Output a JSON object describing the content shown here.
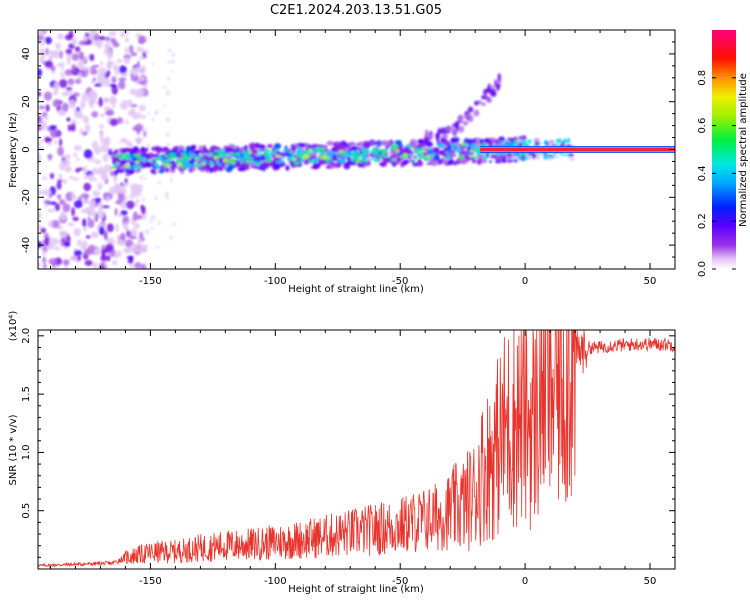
{
  "title": "C2E1.2024.203.13.51.G05",
  "colors": {
    "snr_line": "#e8342d",
    "axis": "#000000"
  },
  "chart_data": [
    {
      "type": "heatmap",
      "xlabel": "Height of straight line (km)",
      "ylabel": "Frequency (Hz)",
      "xlim": [
        -195,
        60
      ],
      "ylim": [
        -50,
        50
      ],
      "x_ticks": [
        -150,
        -100,
        -50,
        0,
        50
      ],
      "y_ticks": [
        -40,
        -20,
        0,
        20,
        40
      ],
      "colorbar": {
        "label": "Normalized spectral amplitude",
        "range": [
          0,
          1
        ],
        "ticks": [
          "0.0",
          "0.2",
          "0.4",
          "0.6",
          "0.8"
        ],
        "tick_values": [
          0.0,
          0.2,
          0.4,
          0.6,
          0.8
        ],
        "colormap": "rainbow (white-violet-blue-cyan-green-yellow-red-magenta)"
      },
      "features": {
        "noise_region_x": [
          -195,
          -160
        ],
        "signal_track_x": [
          -165,
          60
        ],
        "signal_frequency_start_hz": -5,
        "signal_frequency_end_hz": 0,
        "side_branch": {
          "x": [
            -40,
            -10
          ],
          "frequency_hz": [
            5,
            30
          ]
        },
        "steady_signal_x": [
          -10,
          60
        ]
      }
    },
    {
      "type": "line",
      "xlabel": "Height of straight line (km)",
      "ylabel": "SNR (10 * v/v)",
      "y_multiplier": "(x10⁴)",
      "xlim": [
        -195,
        60
      ],
      "ylim": [
        0,
        20500
      ],
      "x_ticks": [
        -150,
        -100,
        -50,
        0,
        50
      ],
      "y_ticks": [
        5000,
        10000,
        15000,
        20000
      ],
      "y_tick_labels": [
        "0.5",
        "1.0",
        "1.5",
        "2.0"
      ],
      "series": [
        {
          "x": [
            -195,
            -180,
            -165,
            -160,
            -150,
            -140,
            -130,
            -120,
            -110,
            -100,
            -90,
            -80,
            -70,
            -60,
            -50,
            -45,
            -40,
            -35,
            -30,
            -25,
            -20,
            -18,
            -15,
            -12,
            -10,
            -8,
            -5,
            -3,
            0,
            2,
            5,
            7,
            8,
            10,
            12,
            15,
            20,
            25,
            30,
            35,
            40,
            45,
            50,
            55,
            60
          ],
          "values": [
            300,
            400,
            500,
            1000,
            1400,
            1500,
            1800,
            2000,
            2100,
            2300,
            2500,
            2800,
            3100,
            3400,
            3700,
            4000,
            4200,
            4500,
            5000,
            5500,
            6500,
            8000,
            9000,
            10000,
            11000,
            12000,
            12500,
            13000,
            13000,
            12500,
            13500,
            17000,
            18500,
            15000,
            16500,
            18000,
            18500,
            19000,
            19000,
            19200,
            19200,
            19300,
            19300,
            19300,
            19200
          ]
        }
      ]
    }
  ]
}
